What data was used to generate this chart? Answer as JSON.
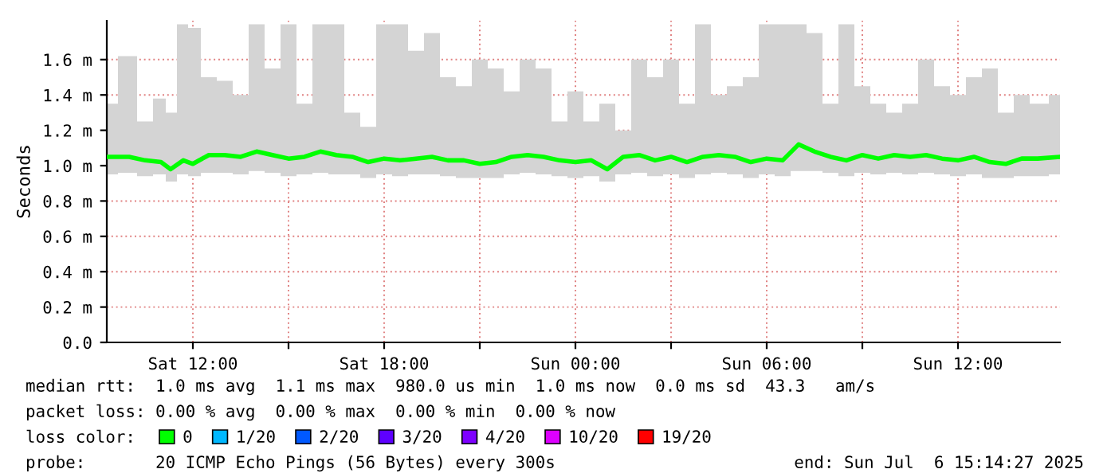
{
  "chart_data": {
    "type": "line",
    "ylabel": "Seconds",
    "x": [
      "2025-07-05T09:18",
      "2025-07-05T10:00",
      "2025-07-05T10:30",
      "2025-07-05T11:00",
      "2025-07-05T11:18",
      "2025-07-05T11:42",
      "2025-07-05T12:00",
      "2025-07-05T12:30",
      "2025-07-05T13:00",
      "2025-07-05T13:30",
      "2025-07-05T14:00",
      "2025-07-05T14:30",
      "2025-07-05T15:00",
      "2025-07-05T15:30",
      "2025-07-05T16:00",
      "2025-07-05T16:30",
      "2025-07-05T17:00",
      "2025-07-05T17:30",
      "2025-07-05T18:00",
      "2025-07-05T18:30",
      "2025-07-05T19:00",
      "2025-07-05T19:30",
      "2025-07-05T20:00",
      "2025-07-05T20:30",
      "2025-07-05T21:00",
      "2025-07-05T21:30",
      "2025-07-05T22:00",
      "2025-07-05T22:30",
      "2025-07-05T23:00",
      "2025-07-05T23:30",
      "2025-07-06T00:00",
      "2025-07-06T00:30",
      "2025-07-06T01:00",
      "2025-07-06T01:30",
      "2025-07-06T02:00",
      "2025-07-06T02:30",
      "2025-07-06T03:00",
      "2025-07-06T03:30",
      "2025-07-06T04:00",
      "2025-07-06T04:30",
      "2025-07-06T05:00",
      "2025-07-06T05:30",
      "2025-07-06T06:00",
      "2025-07-06T06:30",
      "2025-07-06T07:00",
      "2025-07-06T07:30",
      "2025-07-06T08:00",
      "2025-07-06T08:30",
      "2025-07-06T09:00",
      "2025-07-06T09:30",
      "2025-07-06T10:00",
      "2025-07-06T10:30",
      "2025-07-06T11:00",
      "2025-07-06T11:30",
      "2025-07-06T12:00",
      "2025-07-06T12:30",
      "2025-07-06T13:00",
      "2025-07-06T13:30",
      "2025-07-06T14:00",
      "2025-07-06T14:30",
      "2025-07-06T15:12"
    ],
    "series": [
      {
        "name": "0",
        "color": "#00ff00",
        "values": [
          1.05,
          1.05,
          1.03,
          1.02,
          0.98,
          1.03,
          1.01,
          1.06,
          1.06,
          1.05,
          1.08,
          1.06,
          1.04,
          1.05,
          1.08,
          1.06,
          1.05,
          1.02,
          1.04,
          1.03,
          1.04,
          1.05,
          1.03,
          1.03,
          1.01,
          1.02,
          1.05,
          1.06,
          1.05,
          1.03,
          1.02,
          1.03,
          0.98,
          1.05,
          1.06,
          1.03,
          1.05,
          1.02,
          1.05,
          1.06,
          1.05,
          1.02,
          1.04,
          1.03,
          1.12,
          1.08,
          1.05,
          1.03,
          1.06,
          1.04,
          1.06,
          1.05,
          1.06,
          1.04,
          1.03,
          1.05,
          1.02,
          1.01,
          1.04,
          1.04,
          1.05
        ],
        "lower": [
          0.95,
          0.96,
          0.94,
          0.95,
          0.91,
          0.95,
          0.94,
          0.96,
          0.96,
          0.95,
          0.97,
          0.96,
          0.94,
          0.95,
          0.96,
          0.95,
          0.95,
          0.93,
          0.95,
          0.94,
          0.95,
          0.95,
          0.94,
          0.93,
          0.93,
          0.93,
          0.95,
          0.96,
          0.95,
          0.94,
          0.93,
          0.94,
          0.91,
          0.95,
          0.96,
          0.94,
          0.95,
          0.93,
          0.95,
          0.96,
          0.95,
          0.93,
          0.95,
          0.94,
          0.97,
          0.97,
          0.96,
          0.94,
          0.96,
          0.95,
          0.96,
          0.95,
          0.96,
          0.95,
          0.94,
          0.95,
          0.93,
          0.93,
          0.94,
          0.94,
          0.95
        ],
        "upper": [
          1.35,
          1.62,
          1.25,
          1.38,
          1.3,
          1.8,
          1.78,
          1.5,
          1.48,
          1.4,
          1.8,
          1.55,
          1.8,
          1.35,
          1.8,
          1.8,
          1.3,
          1.22,
          1.8,
          1.8,
          1.65,
          1.75,
          1.5,
          1.45,
          1.6,
          1.55,
          1.42,
          1.6,
          1.55,
          1.25,
          1.42,
          1.25,
          1.35,
          1.2,
          1.6,
          1.5,
          1.6,
          1.35,
          1.8,
          1.4,
          1.45,
          1.5,
          1.8,
          1.8,
          1.8,
          1.75,
          1.35,
          1.8,
          1.45,
          1.35,
          1.3,
          1.35,
          1.6,
          1.45,
          1.4,
          1.5,
          1.55,
          1.3,
          1.4,
          1.35,
          1.4
        ]
      },
      {
        "name": "1/20",
        "color": "#00b8ff",
        "values": [
          null,
          null,
          null,
          null,
          null,
          null,
          null,
          null,
          null,
          null,
          null,
          null,
          null,
          null,
          null,
          null,
          null,
          null,
          null,
          null,
          null,
          null,
          null,
          null,
          null,
          null,
          null,
          null,
          null,
          null,
          null,
          null,
          null,
          null,
          null,
          null,
          null,
          null,
          null,
          null,
          null,
          null,
          null,
          null,
          null,
          null,
          null,
          null,
          null,
          null,
          null,
          null,
          null,
          null,
          null,
          null,
          null,
          null,
          null,
          null,
          null
        ]
      },
      {
        "name": "2/20",
        "color": "#0059ff",
        "values": [
          null,
          null,
          null,
          null,
          null,
          null,
          null,
          null,
          null,
          null,
          null,
          null,
          null,
          null,
          null,
          null,
          null,
          null,
          null,
          null,
          null,
          null,
          null,
          null,
          null,
          null,
          null,
          null,
          null,
          null,
          null,
          null,
          null,
          null,
          null,
          null,
          null,
          null,
          null,
          null,
          null,
          null,
          null,
          null,
          null,
          null,
          null,
          null,
          null,
          null,
          null,
          null,
          null,
          null,
          null,
          null,
          null,
          null,
          null,
          null,
          null
        ]
      },
      {
        "name": "3/20",
        "color": "#5e00ff",
        "values": [
          null,
          null,
          null,
          null,
          null,
          null,
          null,
          null,
          null,
          null,
          null,
          null,
          null,
          null,
          null,
          null,
          null,
          null,
          null,
          null,
          null,
          null,
          null,
          null,
          null,
          null,
          null,
          null,
          null,
          null,
          null,
          null,
          null,
          null,
          null,
          null,
          null,
          null,
          null,
          null,
          null,
          null,
          null,
          null,
          null,
          null,
          null,
          null,
          null,
          null,
          null,
          null,
          null,
          null,
          null,
          null,
          null,
          null,
          null,
          null,
          null
        ]
      },
      {
        "name": "4/20",
        "color": "#7e00ff",
        "values": [
          null,
          null,
          null,
          null,
          null,
          null,
          null,
          null,
          null,
          null,
          null,
          null,
          null,
          null,
          null,
          null,
          null,
          null,
          null,
          null,
          null,
          null,
          null,
          null,
          null,
          null,
          null,
          null,
          null,
          null,
          null,
          null,
          null,
          null,
          null,
          null,
          null,
          null,
          null,
          null,
          null,
          null,
          null,
          null,
          null,
          null,
          null,
          null,
          null,
          null,
          null,
          null,
          null,
          null,
          null,
          null,
          null,
          null,
          null,
          null,
          null
        ]
      },
      {
        "name": "10/20",
        "color": "#dd00ff",
        "values": [
          null,
          null,
          null,
          null,
          null,
          null,
          null,
          null,
          null,
          null,
          null,
          null,
          null,
          null,
          null,
          null,
          null,
          null,
          null,
          null,
          null,
          null,
          null,
          null,
          null,
          null,
          null,
          null,
          null,
          null,
          null,
          null,
          null,
          null,
          null,
          null,
          null,
          null,
          null,
          null,
          null,
          null,
          null,
          null,
          null,
          null,
          null,
          null,
          null,
          null,
          null,
          null,
          null,
          null,
          null,
          null,
          null,
          null,
          null,
          null,
          null
        ]
      },
      {
        "name": "19/20",
        "color": "#ff0000",
        "values": [
          null,
          null,
          null,
          null,
          null,
          null,
          null,
          null,
          null,
          null,
          null,
          null,
          null,
          null,
          null,
          null,
          null,
          null,
          null,
          null,
          null,
          null,
          null,
          null,
          null,
          null,
          null,
          null,
          null,
          null,
          null,
          null,
          null,
          null,
          null,
          null,
          null,
          null,
          null,
          null,
          null,
          null,
          null,
          null,
          null,
          null,
          null,
          null,
          null,
          null,
          null,
          null,
          null,
          null,
          null,
          null,
          null,
          null,
          null,
          null,
          null
        ]
      }
    ],
    "xlim": [
      "2025-07-05T09:18",
      "2025-07-06T15:12"
    ],
    "xticks": [
      {
        "value": "2025-07-05T12:00",
        "label": "Sat 12:00"
      },
      {
        "value": "2025-07-05T15:00",
        "label": null
      },
      {
        "value": "2025-07-05T18:00",
        "label": "Sat 18:00"
      },
      {
        "value": "2025-07-05T21:00",
        "label": null
      },
      {
        "value": "2025-07-06T00:00",
        "label": "Sun 00:00"
      },
      {
        "value": "2025-07-06T03:00",
        "label": null
      },
      {
        "value": "2025-07-06T06:00",
        "label": "Sun 06:00"
      },
      {
        "value": "2025-07-06T09:00",
        "label": null
      },
      {
        "value": "2025-07-06T12:00",
        "label": "Sun 12:00"
      }
    ],
    "ylim": [
      0,
      1.82
    ],
    "yticks": [
      {
        "value": 0,
        "label": "0.0"
      },
      {
        "value": 0.2,
        "label": "0.2 m"
      },
      {
        "value": 0.4,
        "label": "0.4 m"
      },
      {
        "value": 0.6,
        "label": "0.6 m"
      },
      {
        "value": 0.8,
        "label": "0.8 m"
      },
      {
        "value": 1.0,
        "label": "1.0 m"
      },
      {
        "value": 1.2,
        "label": "1.2 m"
      },
      {
        "value": 1.4,
        "label": "1.4 m"
      },
      {
        "value": 1.6,
        "label": "1.6 m"
      }
    ],
    "grid": true,
    "legend": "bottom",
    "legend_title": "loss color:",
    "annotations": [
      "median rtt:  1.0 ms avg  1.1 ms max  980.0 us min  1.0 ms now  0.0 ms sd  43.3   am/s",
      "packet loss: 0.00 % avg  0.00 % max  0.00 % min  0.00 % now",
      "probe:       20 ICMP Echo Pings (56 Bytes) every 300s",
      "end: Sun Jul  6 15:14:27 2025"
    ]
  }
}
